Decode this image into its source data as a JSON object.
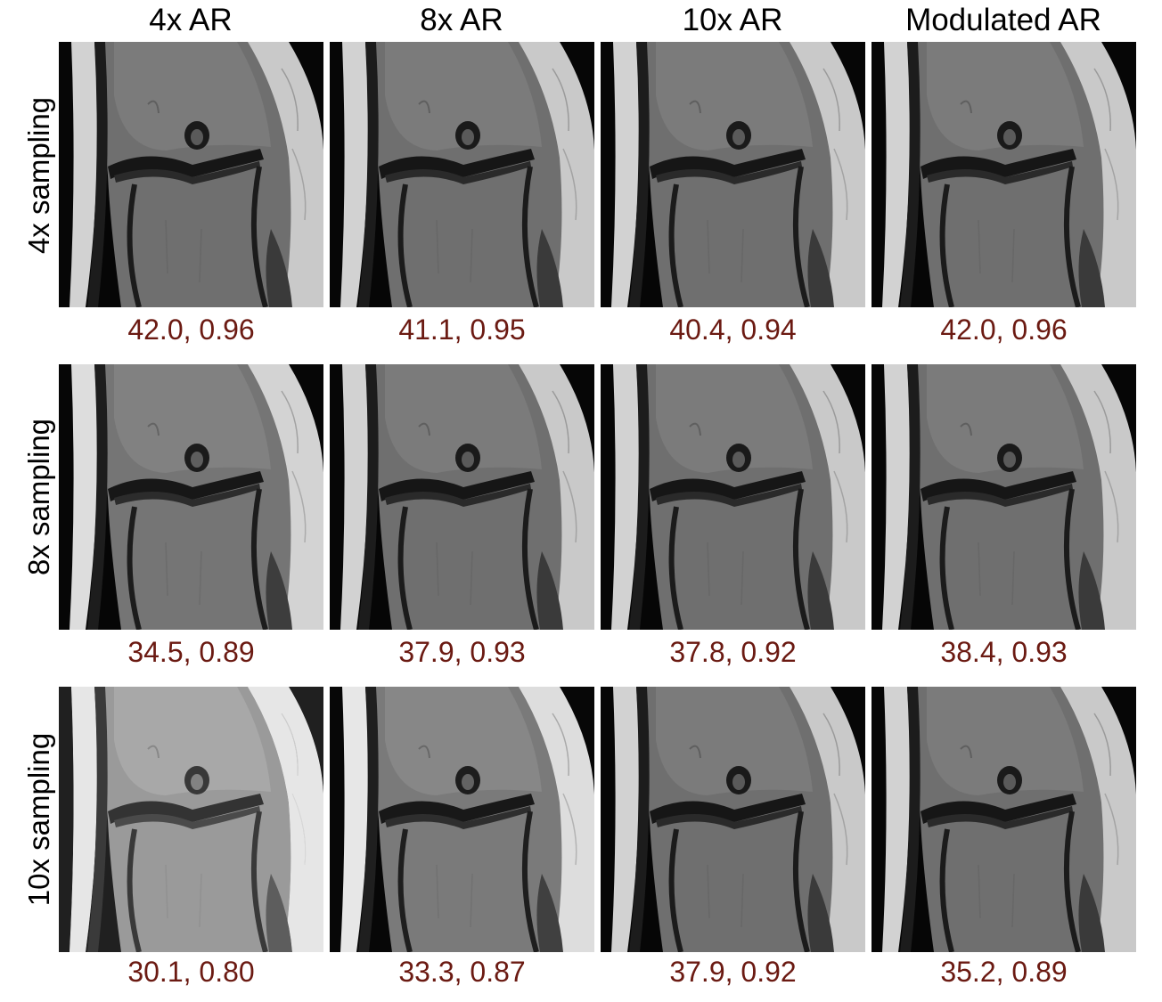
{
  "figure": {
    "columns": [
      "4x AR",
      "8x AR",
      "10x AR",
      "Modulated AR"
    ],
    "rows": [
      {
        "label": "4x sampling",
        "metrics": [
          "42.0, 0.96",
          "41.1, 0.95",
          "40.4, 0.94",
          "42.0, 0.96"
        ]
      },
      {
        "label": "8x sampling",
        "metrics": [
          "34.5, 0.89",
          "37.9, 0.93",
          "37.8, 0.92",
          "38.4, 0.93"
        ]
      },
      {
        "label": "10x sampling",
        "metrics": [
          "30.1, 0.80",
          "33.3, 0.87",
          "37.9, 0.92",
          "35.2, 0.89"
        ]
      }
    ]
  },
  "colors": {
    "metric_text": "#6b1a12",
    "background": "#ffffff",
    "image_background": "#050505"
  }
}
